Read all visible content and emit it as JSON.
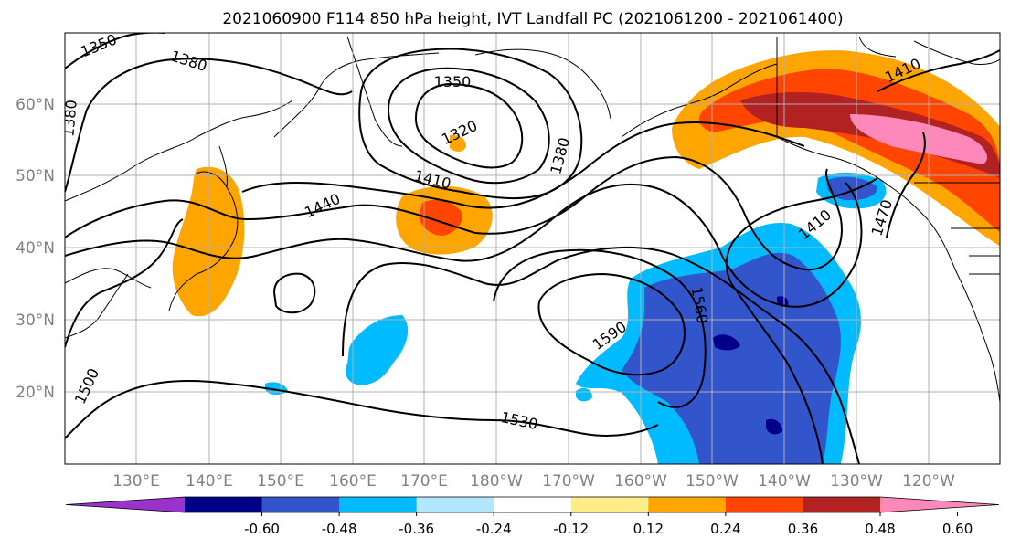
{
  "title": "2021060900 F114 850 hPa height, IVT Landfall PC (2021061200 - 2021061400)",
  "lat_labels": [
    "20°N",
    "30°N",
    "40°N",
    "50°N",
    "60°N"
  ],
  "lon_labels": [
    "130°E",
    "140°E",
    "150°E",
    "160°E",
    "170°E",
    "180°W",
    "170°W",
    "160°W",
    "150°W",
    "140°W",
    "130°W",
    "120°W"
  ],
  "contour_labels": [
    "1350",
    "1380",
    "1380",
    "1350",
    "1320",
    "1380",
    "1410",
    "1440",
    "1410",
    "1410",
    "1470",
    "1560",
    "1590",
    "1530",
    "1500"
  ],
  "colorbar": {
    "colors": [
      "#9933cc",
      "#000088",
      "#3355cc",
      "#00bbff",
      "#b3e6ff",
      "#ffffff",
      "#ffee88",
      "#ffa500",
      "#ff4500",
      "#b22222",
      "#ff88bb"
    ],
    "tick_labels": [
      "-0.60",
      "-0.48",
      "-0.36",
      "-0.24",
      "-0.12",
      "0.12",
      "0.24",
      "0.36",
      "0.48",
      "0.60"
    ]
  }
}
